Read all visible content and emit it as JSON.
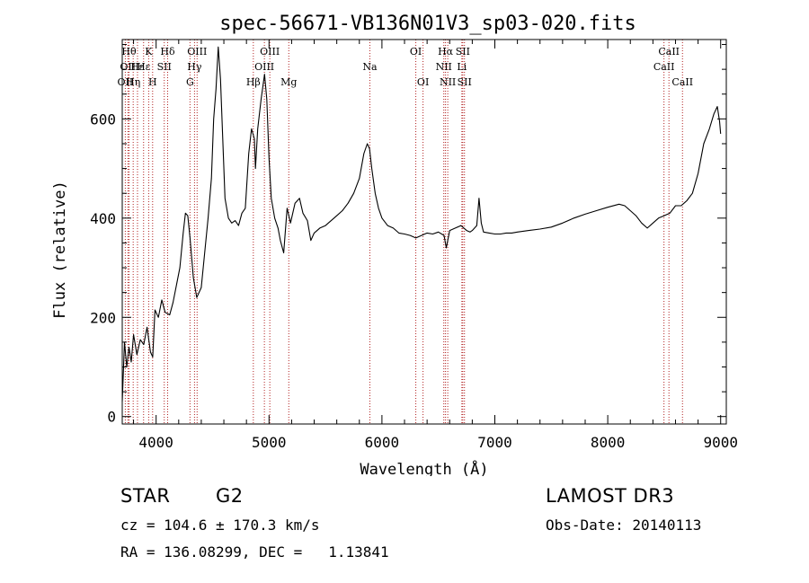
{
  "chart_data": {
    "type": "line",
    "title": "spec-56671-VB136N01V3_sp03-020.fits",
    "xlabel": "Wavelength (Å)",
    "ylabel": "Flux (relative)",
    "xlim": [
      3700,
      9050
    ],
    "ylim": [
      -15,
      760
    ],
    "xticks": [
      4000,
      5000,
      6000,
      7000,
      8000,
      9000
    ],
    "yticks": [
      0,
      200,
      400,
      600
    ],
    "grid": false,
    "line_color": "#000000",
    "marker_color": "#b22222",
    "series": [
      {
        "name": "flux",
        "points": [
          [
            3700,
            30
          ],
          [
            3720,
            150
          ],
          [
            3740,
            100
          ],
          [
            3760,
            140
          ],
          [
            3780,
            110
          ],
          [
            3800,
            165
          ],
          [
            3830,
            125
          ],
          [
            3860,
            155
          ],
          [
            3890,
            145
          ],
          [
            3920,
            180
          ],
          [
            3950,
            130
          ],
          [
            3970,
            120
          ],
          [
            3990,
            215
          ],
          [
            4020,
            200
          ],
          [
            4050,
            235
          ],
          [
            4080,
            210
          ],
          [
            4120,
            205
          ],
          [
            4150,
            230
          ],
          [
            4180,
            265
          ],
          [
            4210,
            300
          ],
          [
            4240,
            370
          ],
          [
            4260,
            410
          ],
          [
            4280,
            405
          ],
          [
            4300,
            360
          ],
          [
            4330,
            280
          ],
          [
            4360,
            240
          ],
          [
            4400,
            260
          ],
          [
            4430,
            330
          ],
          [
            4460,
            400
          ],
          [
            4490,
            480
          ],
          [
            4510,
            600
          ],
          [
            4530,
            660
          ],
          [
            4550,
            745
          ],
          [
            4570,
            680
          ],
          [
            4590,
            560
          ],
          [
            4610,
            440
          ],
          [
            4640,
            400
          ],
          [
            4670,
            390
          ],
          [
            4700,
            395
          ],
          [
            4730,
            385
          ],
          [
            4760,
            410
          ],
          [
            4790,
            420
          ],
          [
            4820,
            530
          ],
          [
            4845,
            580
          ],
          [
            4870,
            560
          ],
          [
            4880,
            500
          ],
          [
            4900,
            580
          ],
          [
            4930,
            640
          ],
          [
            4960,
            690
          ],
          [
            4980,
            640
          ],
          [
            5000,
            520
          ],
          [
            5020,
            440
          ],
          [
            5050,
            400
          ],
          [
            5080,
            380
          ],
          [
            5100,
            355
          ],
          [
            5130,
            330
          ],
          [
            5160,
            420
          ],
          [
            5190,
            390
          ],
          [
            5230,
            430
          ],
          [
            5270,
            440
          ],
          [
            5300,
            410
          ],
          [
            5340,
            395
          ],
          [
            5370,
            355
          ],
          [
            5400,
            370
          ],
          [
            5450,
            380
          ],
          [
            5500,
            385
          ],
          [
            5550,
            395
          ],
          [
            5600,
            405
          ],
          [
            5650,
            415
          ],
          [
            5700,
            430
          ],
          [
            5750,
            450
          ],
          [
            5800,
            480
          ],
          [
            5840,
            530
          ],
          [
            5870,
            550
          ],
          [
            5890,
            540
          ],
          [
            5910,
            500
          ],
          [
            5940,
            450
          ],
          [
            5970,
            420
          ],
          [
            6000,
            400
          ],
          [
            6050,
            385
          ],
          [
            6100,
            380
          ],
          [
            6150,
            370
          ],
          [
            6200,
            368
          ],
          [
            6250,
            365
          ],
          [
            6300,
            360
          ],
          [
            6350,
            365
          ],
          [
            6400,
            370
          ],
          [
            6450,
            368
          ],
          [
            6500,
            372
          ],
          [
            6550,
            365
          ],
          [
            6570,
            340
          ],
          [
            6600,
            375
          ],
          [
            6650,
            380
          ],
          [
            6700,
            385
          ],
          [
            6750,
            375
          ],
          [
            6780,
            372
          ],
          [
            6800,
            375
          ],
          [
            6820,
            380
          ],
          [
            6840,
            385
          ],
          [
            6860,
            440
          ],
          [
            6880,
            390
          ],
          [
            6900,
            372
          ],
          [
            6950,
            370
          ],
          [
            7000,
            368
          ],
          [
            7050,
            368
          ],
          [
            7100,
            370
          ],
          [
            7150,
            370
          ],
          [
            7200,
            372
          ],
          [
            7300,
            375
          ],
          [
            7400,
            378
          ],
          [
            7500,
            382
          ],
          [
            7600,
            390
          ],
          [
            7700,
            400
          ],
          [
            7800,
            408
          ],
          [
            7900,
            415
          ],
          [
            8000,
            422
          ],
          [
            8100,
            428
          ],
          [
            8150,
            425
          ],
          [
            8200,
            415
          ],
          [
            8250,
            405
          ],
          [
            8300,
            390
          ],
          [
            8350,
            380
          ],
          [
            8400,
            390
          ],
          [
            8450,
            400
          ],
          [
            8500,
            405
          ],
          [
            8550,
            410
          ],
          [
            8600,
            425
          ],
          [
            8650,
            425
          ],
          [
            8700,
            435
          ],
          [
            8750,
            450
          ],
          [
            8800,
            490
          ],
          [
            8850,
            550
          ],
          [
            8900,
            580
          ],
          [
            8940,
            610
          ],
          [
            8970,
            625
          ],
          [
            8990,
            595
          ],
          [
            9000,
            570
          ]
        ]
      }
    ],
    "line_markers": [
      {
        "wl": 3727,
        "label": "OII",
        "row": 3
      },
      {
        "wl": 3750,
        "label": "OII",
        "row": 2
      },
      {
        "wl": 3760,
        "label": "Hθ",
        "row": 1
      },
      {
        "wl": 3797,
        "label": "Hη",
        "row": 3
      },
      {
        "wl": 3835,
        "label": "Hε",
        "row": 2
      },
      {
        "wl": 3889,
        "label": "Hε",
        "row": 2
      },
      {
        "wl": 3934,
        "label": "K",
        "row": 1
      },
      {
        "wl": 3969,
        "label": "H",
        "row": 3
      },
      {
        "wl": 4072,
        "label": "SII",
        "row": 2
      },
      {
        "wl": 4102,
        "label": "Hδ",
        "row": 1
      },
      {
        "wl": 4300,
        "label": "G",
        "row": 3
      },
      {
        "wl": 4340,
        "label": "Hγ",
        "row": 2
      },
      {
        "wl": 4363,
        "label": "OIII",
        "row": 1
      },
      {
        "wl": 4861,
        "label": "Hβ",
        "row": 3
      },
      {
        "wl": 4959,
        "label": "OIII",
        "row": 2
      },
      {
        "wl": 5007,
        "label": "OIII",
        "row": 1
      },
      {
        "wl": 5175,
        "label": "Mg",
        "row": 3
      },
      {
        "wl": 5893,
        "label": "Na",
        "row": 2
      },
      {
        "wl": 6300,
        "label": "OI",
        "row": 1
      },
      {
        "wl": 6364,
        "label": "OI",
        "row": 3
      },
      {
        "wl": 6548,
        "label": "NII",
        "row": 2
      },
      {
        "wl": 6563,
        "label": "Hα",
        "row": 1
      },
      {
        "wl": 6583,
        "label": "NII",
        "row": 3
      },
      {
        "wl": 6708,
        "label": "Li",
        "row": 2
      },
      {
        "wl": 6716,
        "label": "SII",
        "row": 1
      },
      {
        "wl": 6731,
        "label": "SII",
        "row": 3
      },
      {
        "wl": 8498,
        "label": "CaII",
        "row": 2
      },
      {
        "wl": 8542,
        "label": "CaII",
        "row": 1
      },
      {
        "wl": 8662,
        "label": "CaII",
        "row": 3
      }
    ]
  },
  "info": {
    "object_class": "STAR",
    "subclass": "G2",
    "survey": "LAMOST DR3",
    "redshift": "cz = 104.6 ± 170.3 km/s",
    "obs_date": "Obs-Date: 20140113",
    "coords": "RA = 136.08299, DEC =   1.13841"
  }
}
